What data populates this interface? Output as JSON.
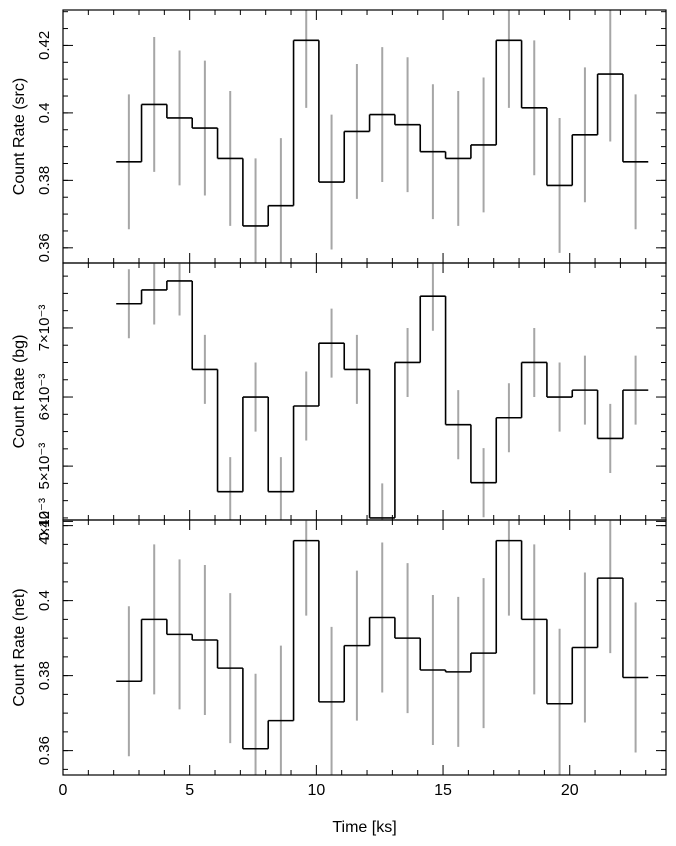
{
  "chart_data": [
    {
      "type": "line",
      "ylabel": "Count Rate (src)",
      "xlim": [
        0,
        23.8
      ],
      "ylim": [
        0.3555,
        0.4305
      ],
      "yticks": [
        0.36,
        0.38,
        0.4,
        0.42
      ],
      "ytick_labels": [
        "0.36",
        "0.38",
        "0.4",
        "0.42"
      ],
      "x": [
        2.6,
        3.6,
        4.6,
        5.6,
        6.6,
        7.6,
        8.6,
        9.6,
        10.6,
        11.6,
        12.6,
        13.6,
        14.6,
        15.6,
        16.6,
        17.6,
        18.6,
        19.6,
        20.6,
        21.6,
        22.6
      ],
      "y": [
        0.3855,
        0.4025,
        0.3985,
        0.3955,
        0.3865,
        0.3665,
        0.3725,
        0.4215,
        0.3795,
        0.3945,
        0.3995,
        0.3965,
        0.3885,
        0.3865,
        0.3905,
        0.4215,
        0.4015,
        0.3785,
        0.3935,
        0.4115,
        0.3855
      ],
      "err": [
        0.02,
        0.02,
        0.02,
        0.02,
        0.02,
        0.02,
        0.02,
        0.02,
        0.02,
        0.02,
        0.02,
        0.02,
        0.02,
        0.02,
        0.02,
        0.02,
        0.02,
        0.02,
        0.02,
        0.02,
        0.02
      ]
    },
    {
      "type": "line",
      "ylabel": "Count Rate (bg)",
      "xlim": [
        0,
        23.8
      ],
      "ylim": [
        0.00422,
        0.00794
      ],
      "yticks": [
        0.0042,
        0.005,
        0.006,
        0.007
      ],
      "ytick_labels": [
        "4×10⁻³",
        "5×10⁻³",
        "6×10⁻³",
        "7×10⁻³"
      ],
      "x": [
        2.6,
        3.6,
        4.6,
        5.6,
        6.6,
        7.6,
        8.6,
        9.6,
        10.6,
        11.6,
        12.6,
        13.6,
        14.6,
        15.6,
        16.6,
        17.6,
        18.6,
        19.6,
        20.6,
        21.6,
        22.6
      ],
      "y": [
        0.00735,
        0.00755,
        0.00768,
        0.0064,
        0.00463,
        0.006,
        0.00463,
        0.00587,
        0.00678,
        0.0064,
        0.00425,
        0.0065,
        0.00746,
        0.0056,
        0.00476,
        0.0057,
        0.0065,
        0.006,
        0.0061,
        0.0054,
        0.0061
      ],
      "err": [
        0.0005,
        0.0005,
        0.0005,
        0.0005,
        0.0005,
        0.0005,
        0.0005,
        0.0005,
        0.0005,
        0.0005,
        0.0005,
        0.0005,
        0.0005,
        0.0005,
        0.0005,
        0.0005,
        0.0005,
        0.0005,
        0.0005,
        0.0005,
        0.0005
      ]
    },
    {
      "type": "line",
      "ylabel": "Count Rate (net)",
      "xlim": [
        0,
        23.8
      ],
      "ylim": [
        0.3535,
        0.4215
      ],
      "yticks": [
        0.36,
        0.38,
        0.4,
        0.42
      ],
      "ytick_labels": [
        "0.36",
        "0.38",
        "0.4",
        "0.42"
      ],
      "xticks": [
        0,
        5,
        10,
        15,
        20
      ],
      "xtick_labels": [
        "0",
        "5",
        "10",
        "15",
        "20"
      ],
      "xlabel": "Time [ks]",
      "x": [
        2.6,
        3.6,
        4.6,
        5.6,
        6.6,
        7.6,
        8.6,
        9.6,
        10.6,
        11.6,
        12.6,
        13.6,
        14.6,
        15.6,
        16.6,
        17.6,
        18.6,
        19.6,
        20.6,
        21.6,
        22.6
      ],
      "y": [
        0.3785,
        0.395,
        0.391,
        0.3895,
        0.382,
        0.3605,
        0.368,
        0.416,
        0.373,
        0.388,
        0.3955,
        0.39,
        0.3815,
        0.381,
        0.386,
        0.416,
        0.395,
        0.3725,
        0.3875,
        0.406,
        0.3795
      ],
      "err": [
        0.02,
        0.02,
        0.02,
        0.02,
        0.02,
        0.02,
        0.02,
        0.02,
        0.02,
        0.02,
        0.02,
        0.02,
        0.02,
        0.02,
        0.02,
        0.02,
        0.02,
        0.02,
        0.02,
        0.02,
        0.02
      ]
    }
  ]
}
